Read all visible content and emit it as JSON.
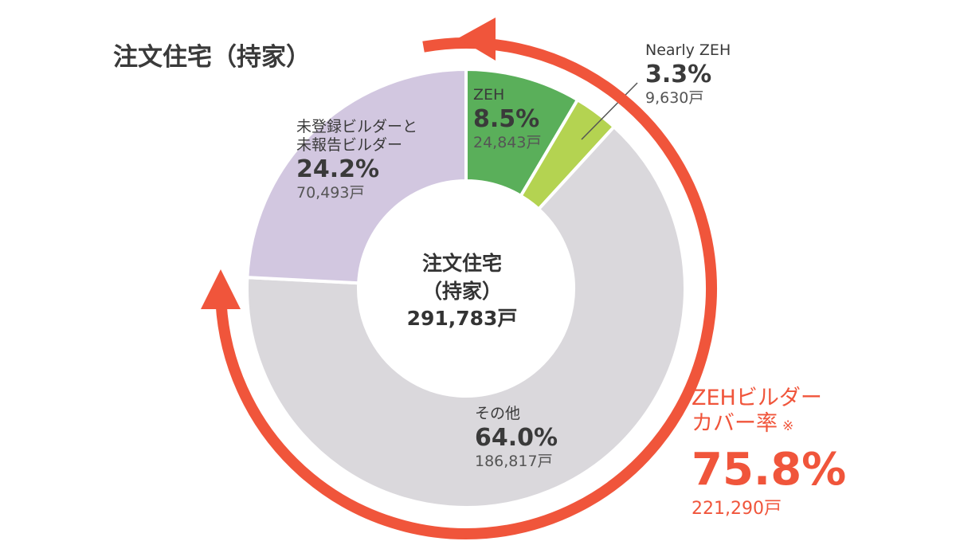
{
  "title": "注文住宅（持家）",
  "center": {
    "line1": "注文住宅",
    "line2": "（持家）",
    "total": "291,783戸"
  },
  "chart_data": {
    "type": "pie",
    "title": "注文住宅（持家）",
    "slices": [
      {
        "name": "ZEH",
        "percent": 8.5,
        "percent_label": "8.5%",
        "units": 24843,
        "units_label": "24,843戸",
        "color": "#5aaf5a"
      },
      {
        "name": "Nearly ZEH",
        "percent": 3.3,
        "percent_label": "3.3%",
        "units": 9630,
        "units_label": "9,630戸",
        "color": "#b4d351"
      },
      {
        "name": "その他",
        "percent": 64.0,
        "percent_label": "64.0%",
        "units": 186817,
        "units_label": "186,817戸",
        "color": "#dad8dc"
      },
      {
        "name_lines": [
          "未登録ビルダーと",
          "未報告ビルダー"
        ],
        "percent": 24.2,
        "percent_label": "24.2%",
        "units": 70493,
        "units_label": "70,493戸",
        "color": "#d2c7e0"
      }
    ],
    "total_label": "291,783戸",
    "coverage": {
      "title_lines": [
        "ZEHビルダー",
        "カバー率"
      ],
      "note_mark": "※",
      "percent": 75.8,
      "percent_label": "75.8%",
      "units": 221290,
      "units_label": "221,290戸"
    },
    "colors": {
      "arrow": "#f0553b",
      "text": "#3a3a3a"
    }
  }
}
